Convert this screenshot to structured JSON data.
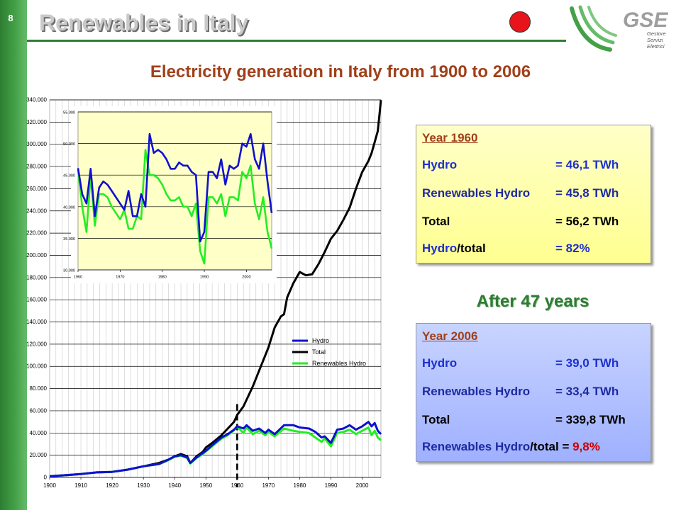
{
  "slide_number": "8",
  "title": "Renewables in Italy",
  "logo": {
    "brand": "GSE",
    "line1": "Gestore",
    "line2": "Servizi",
    "line3": "Elettrici"
  },
  "subtitle": "Electricity generation in Italy from 1900 to 2006",
  "colors": {
    "hydro": "#1010d0",
    "total": "#000000",
    "renewables_hydro": "#22ee22",
    "accent_green": "#2e7d32",
    "title_red": "#a0401a"
  },
  "box_1960": {
    "year": "Year 1960",
    "hydro_label": "Hydro",
    "hydro_value": "= 46,1 TWh",
    "ren_label": "Renewables Hydro",
    "ren_value": "= 45,8 TWh",
    "total_label": "Total",
    "total_value": "= 56,2 TWh",
    "ratio_label_a": "Hydro",
    "ratio_label_b": "/total",
    "ratio_value": "= 82%"
  },
  "after_years": "After 47 years",
  "box_2006": {
    "year": "Year 2006",
    "hydro_label": "Hydro",
    "hydro_value": "= 39,0 TWh",
    "ren_label": "Renewables Hydro",
    "ren_value": "= 33,4 TWh",
    "total_label": "Total",
    "total_value": "= 339,8 TWh",
    "ratio_label_a": "Renewables Hydro",
    "ratio_label_b": "/total = ",
    "ratio_value": "9,8%"
  },
  "chart_data": [
    {
      "type": "line",
      "xlim": [
        1900,
        2006
      ],
      "ylim": [
        0,
        340000
      ],
      "x_ticks": [
        "1900",
        "1910",
        "1920",
        "1930",
        "1940",
        "1950",
        "1960",
        "1970",
        "1980",
        "1990",
        "2000"
      ],
      "y_ticks": [
        "0",
        "20.000",
        "40.000",
        "60.000",
        "80.000",
        "100.000",
        "120.000",
        "140.000",
        "160.000",
        "180.000",
        "200.000",
        "220.000",
        "240.000",
        "260.000",
        "280.000",
        "300.000",
        "320.000",
        "340.000"
      ],
      "marker_year": 1960,
      "legend": [
        "Hydro",
        "Total",
        "Renewables Hydro"
      ],
      "legend_position": "right",
      "series": [
        {
          "name": "Hydro",
          "x": [
            1900,
            1905,
            1910,
            1915,
            1920,
            1925,
            1930,
            1935,
            1938,
            1940,
            1942,
            1944,
            1945,
            1947,
            1949,
            1950,
            1952,
            1955,
            1957,
            1959,
            1960,
            1962,
            1963,
            1965,
            1967,
            1969,
            1970,
            1972,
            1975,
            1978,
            1980,
            1983,
            1985,
            1987,
            1988,
            1990,
            1992,
            1994,
            1996,
            1998,
            2000,
            2002,
            2003,
            2004,
            2005,
            2006
          ],
          "y": [
            1000,
            2000,
            3000,
            4500,
            5000,
            7000,
            10000,
            12000,
            16000,
            19000,
            20000,
            18000,
            13000,
            18000,
            22000,
            24000,
            29000,
            36000,
            39000,
            43000,
            46100,
            44000,
            47000,
            42000,
            44000,
            40000,
            43000,
            39000,
            47000,
            47000,
            45000,
            44000,
            41000,
            36000,
            37000,
            31000,
            43000,
            44000,
            47000,
            43000,
            46000,
            50000,
            46000,
            49000,
            42000,
            39000
          ]
        },
        {
          "name": "Total",
          "x": [
            1900,
            1905,
            1910,
            1915,
            1920,
            1925,
            1930,
            1935,
            1938,
            1940,
            1942,
            1944,
            1945,
            1947,
            1949,
            1950,
            1952,
            1955,
            1957,
            1959,
            1960,
            1962,
            1965,
            1967,
            1969,
            1970,
            1972,
            1974,
            1975,
            1976,
            1978,
            1980,
            1982,
            1984,
            1986,
            1988,
            1990,
            1992,
            1994,
            1996,
            1998,
            2000,
            2002,
            2003,
            2004,
            2005,
            2006
          ],
          "y": [
            1000,
            2000,
            3000,
            4500,
            5000,
            7000,
            10000,
            13000,
            16000,
            19000,
            21000,
            19000,
            13000,
            19000,
            23000,
            27000,
            31000,
            38000,
            44000,
            50000,
            56200,
            64000,
            82000,
            96000,
            110000,
            117000,
            135000,
            145000,
            147000,
            162000,
            175000,
            185000,
            182000,
            183000,
            192000,
            203000,
            215000,
            222000,
            232000,
            243000,
            260000,
            275000,
            285000,
            292000,
            302000,
            312000,
            339800
          ]
        },
        {
          "name": "Renewables Hydro",
          "x": [
            1900,
            1905,
            1910,
            1915,
            1920,
            1925,
            1930,
            1935,
            1938,
            1940,
            1942,
            1944,
            1945,
            1947,
            1949,
            1950,
            1952,
            1955,
            1957,
            1959,
            1960,
            1962,
            1963,
            1965,
            1967,
            1969,
            1970,
            1972,
            1975,
            1978,
            1980,
            1983,
            1985,
            1987,
            1988,
            1990,
            1992,
            1994,
            1996,
            1998,
            2000,
            2002,
            2003,
            2004,
            2005,
            2006
          ],
          "y": [
            1000,
            2000,
            3000,
            4500,
            5000,
            7000,
            10000,
            12000,
            15500,
            18500,
            19500,
            17500,
            12500,
            17500,
            21000,
            23500,
            28000,
            35000,
            38000,
            42500,
            45800,
            40000,
            45000,
            39000,
            42000,
            38000,
            41000,
            37000,
            44000,
            42000,
            41000,
            40000,
            36000,
            32000,
            35000,
            28000,
            40000,
            41000,
            43000,
            39000,
            42000,
            45000,
            38000,
            42000,
            36000,
            33400
          ]
        }
      ]
    },
    {
      "type": "line",
      "xlim": [
        1960,
        2006
      ],
      "ylim": [
        30000,
        55000
      ],
      "x_ticks": [
        "1960",
        "1970",
        "1980",
        "1990",
        "2000"
      ],
      "y_ticks": [
        "30.000",
        "35.000",
        "40.000",
        "45.000",
        "50.000",
        "55.000"
      ],
      "series": [
        {
          "name": "Hydro",
          "x": [
            1960,
            1961,
            1962,
            1963,
            1964,
            1965,
            1966,
            1967,
            1968,
            1969,
            1970,
            1971,
            1972,
            1973,
            1974,
            1975,
            1976,
            1977,
            1978,
            1979,
            1980,
            1981,
            1982,
            1983,
            1984,
            1985,
            1986,
            1987,
            1988,
            1989,
            1990,
            1991,
            1992,
            1993,
            1994,
            1995,
            1996,
            1997,
            1998,
            1999,
            2000,
            2001,
            2002,
            2003,
            2004,
            2005,
            2006
          ],
          "y": [
            46100,
            42000,
            40500,
            46000,
            38500,
            43000,
            44000,
            43500,
            42500,
            41500,
            40500,
            39500,
            42500,
            38500,
            38500,
            42000,
            40000,
            51500,
            48500,
            49000,
            48500,
            47500,
            46000,
            46000,
            47000,
            46500,
            46500,
            45500,
            45000,
            34500,
            36000,
            45500,
            45500,
            44500,
            47500,
            43500,
            46500,
            46000,
            46500,
            50000,
            49500,
            51500,
            47500,
            46000,
            50000,
            44000,
            39000
          ]
        },
        {
          "name": "Renewables Hydro",
          "x": [
            1960,
            1961,
            1962,
            1963,
            1964,
            1965,
            1966,
            1967,
            1968,
            1969,
            1970,
            1971,
            1972,
            1973,
            1974,
            1975,
            1976,
            1977,
            1978,
            1979,
            1980,
            1981,
            1982,
            1983,
            1984,
            1985,
            1986,
            1987,
            1988,
            1989,
            1990,
            1991,
            1992,
            1993,
            1994,
            1995,
            1996,
            1997,
            1998,
            1999,
            2000,
            2001,
            2002,
            2003,
            2004,
            2005,
            2006
          ],
          "y": [
            45800,
            40000,
            36000,
            45000,
            37000,
            42000,
            42000,
            41500,
            40000,
            39000,
            38000,
            39500,
            36500,
            36500,
            38500,
            38000,
            49000,
            45000,
            45000,
            44500,
            43500,
            42000,
            41000,
            41000,
            41500,
            40000,
            40000,
            38500,
            40500,
            33000,
            31000,
            41500,
            41500,
            40500,
            42000,
            38500,
            41500,
            41500,
            41000,
            45500,
            44500,
            46500,
            40500,
            38000,
            41500,
            36000,
            33400
          ]
        }
      ]
    }
  ]
}
